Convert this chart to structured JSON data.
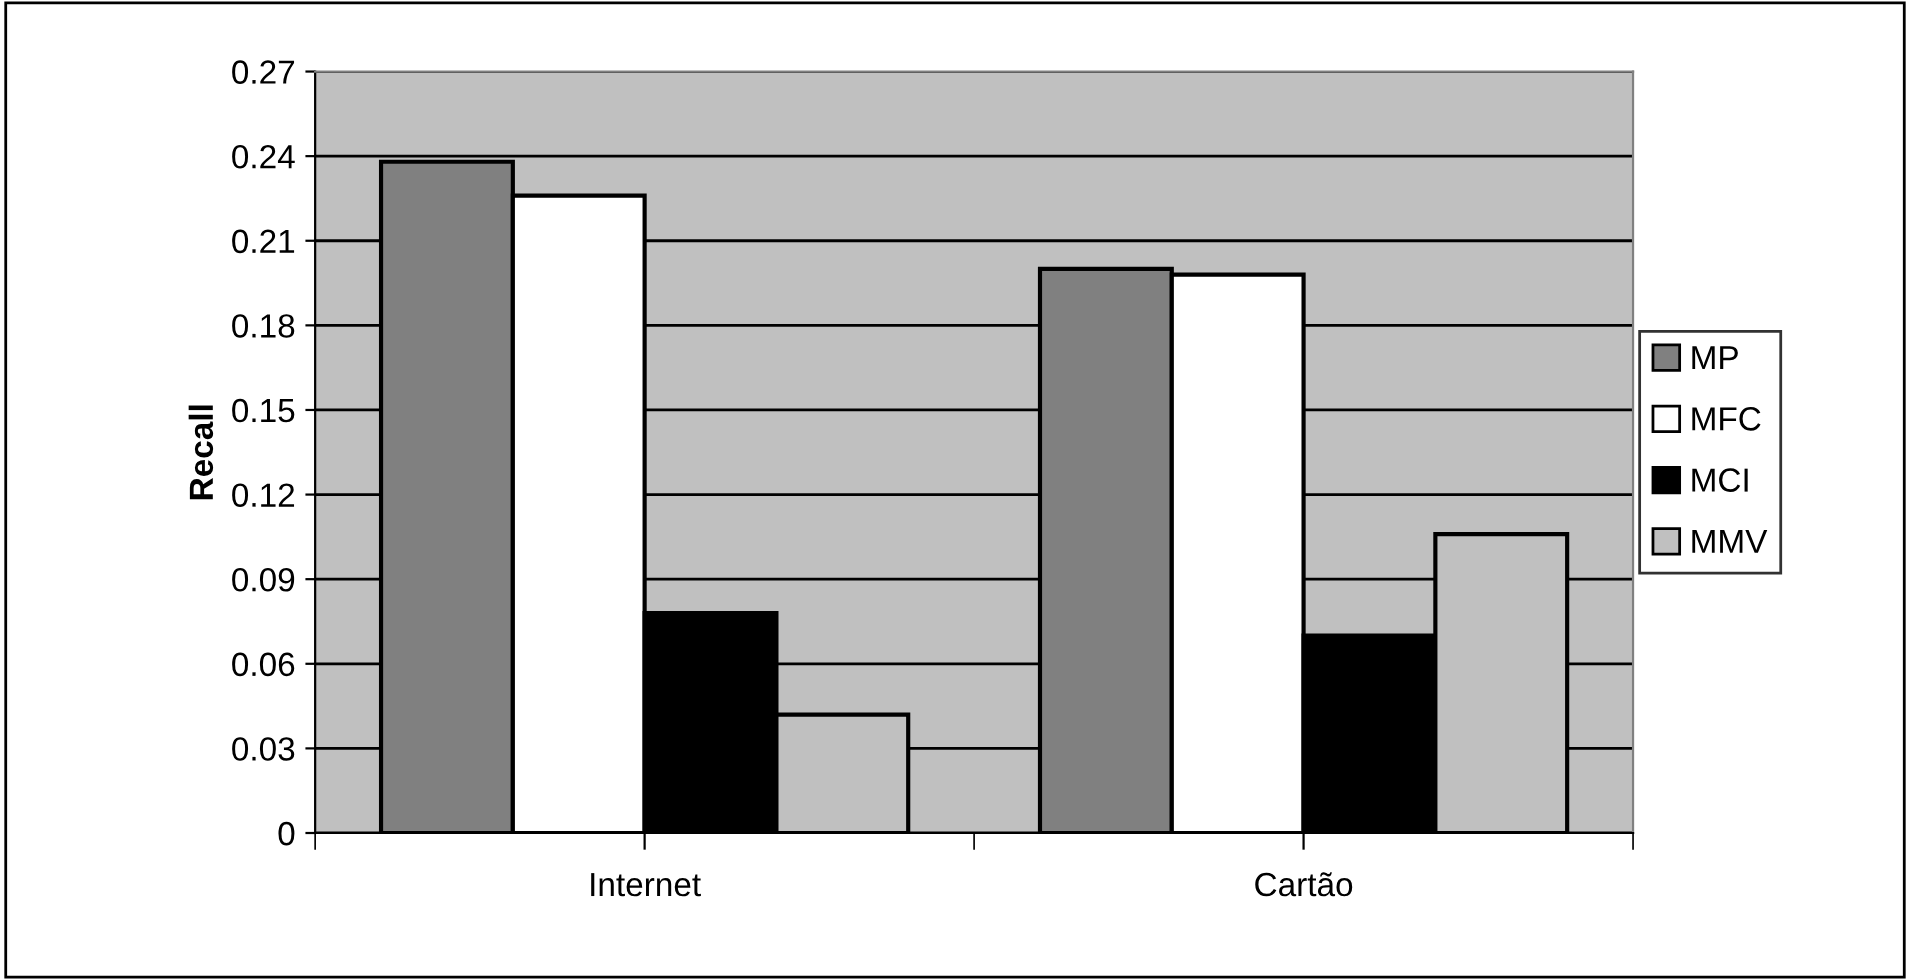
{
  "chart_data": {
    "type": "bar",
    "ylabel": "Recall",
    "categories": [
      "Internet",
      "Cartão"
    ],
    "series": [
      {
        "name": "MP",
        "color": "#808080",
        "values": [
          0.238,
          0.2
        ]
      },
      {
        "name": "MFC",
        "color": "#ffffff",
        "values": [
          0.226,
          0.198
        ]
      },
      {
        "name": "MCI",
        "color": "#000000",
        "values": [
          0.078,
          0.07
        ]
      },
      {
        "name": "MMV",
        "color": "#c0c0c0",
        "values": [
          0.042,
          0.106
        ]
      }
    ],
    "ylim": [
      0,
      0.27
    ],
    "yticks": [
      {
        "value": 0,
        "label": "0"
      },
      0.03,
      0.06,
      0.09,
      0.12,
      0.15,
      0.18,
      0.21,
      0.24,
      0.27
    ],
    "grid": "y",
    "legend": "right"
  }
}
